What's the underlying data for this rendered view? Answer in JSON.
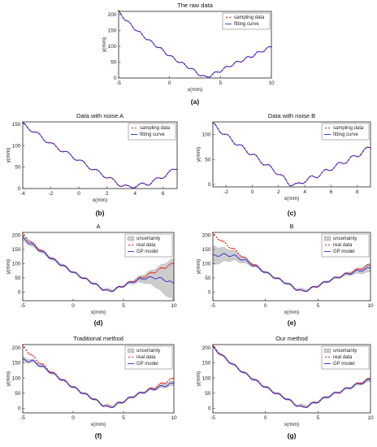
{
  "chart_data": [
    {
      "id": "a",
      "type": "line",
      "title": "The raw data",
      "label": "(a)",
      "xlabel": "x(mm)",
      "ylabel": "y(mm)",
      "xlim": [
        -5,
        10
      ],
      "ylim": [
        0,
        210
      ],
      "xticks": [
        -5,
        0,
        5,
        10
      ],
      "yticks": [
        0,
        50,
        100,
        150,
        200
      ],
      "legend": [
        "sampling data",
        "fitting curve"
      ],
      "legend_position": "top-right",
      "legend_marker": "dot",
      "grid": false,
      "series": [
        {
          "name": "sampling data",
          "x": [
            -5,
            -4,
            -3,
            -2,
            -1,
            0,
            1,
            2,
            3,
            3.5,
            4,
            5,
            6,
            7,
            8,
            9,
            10
          ],
          "y": [
            208,
            173,
            144,
            118,
            95,
            70,
            50,
            32,
            10,
            2,
            8,
            23,
            40,
            54,
            68,
            84,
            98
          ]
        },
        {
          "name": "fitting curve",
          "x": [
            -5,
            -4,
            -3,
            -2,
            -1,
            0,
            1,
            2,
            3,
            3.5,
            4,
            5,
            6,
            7,
            8,
            9,
            10
          ],
          "y": [
            208,
            173,
            144,
            118,
            95,
            70,
            50,
            32,
            10,
            2,
            8,
            23,
            40,
            54,
            68,
            84,
            98
          ]
        }
      ]
    },
    {
      "id": "b",
      "type": "line",
      "title": "Data with noise A",
      "label": "(b)",
      "xlabel": "x(mm)",
      "ylabel": "y(mm)",
      "xlim": [
        -4,
        7
      ],
      "ylim": [
        0,
        155
      ],
      "xticks": [
        -4,
        -2,
        0,
        2,
        4,
        6
      ],
      "yticks": [
        0,
        50,
        100,
        150
      ],
      "legend": [
        "sampling data",
        "fitting curve"
      ],
      "legend_position": "top-right",
      "legend_marker": "dot",
      "grid": false,
      "series": [
        {
          "name": "sampling data",
          "x": [
            -4,
            -3,
            -2,
            -1,
            0,
            1,
            2,
            3,
            3.5,
            4,
            5,
            6,
            7
          ],
          "y": [
            150,
            128,
            104,
            85,
            66,
            45,
            27,
            8,
            3,
            6,
            12,
            28,
            48
          ]
        },
        {
          "name": "fitting curve",
          "x": [
            -4,
            -3,
            -2,
            -1,
            0,
            1,
            2,
            3,
            3.5,
            4,
            5,
            6,
            7
          ],
          "y": [
            150,
            128,
            104,
            85,
            66,
            45,
            27,
            8,
            3,
            6,
            12,
            28,
            48
          ]
        }
      ]
    },
    {
      "id": "c",
      "type": "line",
      "title": "Data with noise B",
      "label": "(c)",
      "xlabel": "x(mm)",
      "ylabel": "y(mm)",
      "xlim": [
        -3,
        9
      ],
      "ylim": [
        -5,
        125
      ],
      "xticks": [
        -2,
        0,
        2,
        4,
        6,
        8
      ],
      "yticks": [
        0,
        50,
        100
      ],
      "legend": [
        "sampling data",
        "fitting curve"
      ],
      "legend_position": "top-right",
      "legend_marker": "dot",
      "grid": false,
      "series": [
        {
          "name": "sampling data",
          "x": [
            -3,
            -2,
            -1,
            0,
            1,
            2,
            2.8,
            3.4,
            4,
            5,
            6,
            7,
            8,
            9
          ],
          "y": [
            120,
            98,
            78,
            60,
            40,
            22,
            2,
            -2,
            8,
            18,
            32,
            45,
            58,
            75
          ]
        },
        {
          "name": "fitting curve",
          "x": [
            -3,
            -2,
            -1,
            0,
            1,
            2,
            2.8,
            3.4,
            4,
            5,
            6,
            7,
            8,
            9
          ],
          "y": [
            120,
            98,
            78,
            60,
            40,
            22,
            2,
            -2,
            8,
            18,
            32,
            45,
            58,
            75
          ]
        }
      ]
    },
    {
      "id": "d",
      "type": "line",
      "title": "A",
      "label": "(d)",
      "xlabel": "x(mm)",
      "ylabel": "y(mm)",
      "xlim": [
        -5,
        10
      ],
      "ylim": [
        -30,
        210
      ],
      "xticks": [
        -5,
        0,
        5,
        10
      ],
      "yticks": [
        0,
        50,
        100,
        150,
        200
      ],
      "legend": [
        "uncertainty",
        "real data",
        "GP model"
      ],
      "legend_position": "top-right",
      "grid": false,
      "series": [
        {
          "name": "real data",
          "x": [
            -5,
            -4,
            -3,
            -2,
            -1,
            0,
            1,
            2,
            3,
            3.5,
            4,
            5,
            6,
            7,
            8,
            9,
            10
          ],
          "y": [
            205,
            170,
            142,
            116,
            93,
            70,
            50,
            32,
            10,
            2,
            8,
            23,
            40,
            54,
            70,
            86,
            100
          ]
        },
        {
          "name": "GP model",
          "x": [
            -5,
            -4,
            -3,
            -2,
            -1,
            0,
            1,
            2,
            3,
            3.5,
            4,
            5,
            6,
            7,
            8,
            9,
            10
          ],
          "y": [
            190,
            165,
            140,
            115,
            93,
            70,
            50,
            32,
            10,
            2,
            8,
            23,
            38,
            48,
            52,
            45,
            30
          ]
        }
      ],
      "uncertainty": {
        "x": [
          -5,
          -4,
          -3,
          -2,
          -1,
          0,
          1,
          2,
          3,
          4,
          5,
          6,
          7,
          8,
          9,
          10
        ],
        "upper": [
          200,
          172,
          146,
          120,
          97,
          73,
          53,
          35,
          13,
          11,
          26,
          44,
          62,
          80,
          100,
          118
        ],
        "lower": [
          180,
          158,
          134,
          110,
          89,
          67,
          47,
          29,
          7,
          5,
          20,
          32,
          34,
          24,
          -5,
          -30
        ]
      }
    },
    {
      "id": "e",
      "type": "line",
      "title": "B",
      "label": "(e)",
      "xlabel": "x(mm)",
      "ylabel": "y(mm)",
      "xlim": [
        -5,
        10
      ],
      "ylim": [
        -30,
        210
      ],
      "xticks": [
        -5,
        0,
        5,
        10
      ],
      "yticks": [
        0,
        50,
        100,
        150,
        200
      ],
      "legend": [
        "uncertainty",
        "real data",
        "GP model"
      ],
      "legend_position": "top-right",
      "grid": false,
      "series": [
        {
          "name": "real data",
          "x": [
            -5,
            -4,
            -3,
            -2,
            -1,
            0,
            1,
            2,
            3,
            3.5,
            4,
            5,
            6,
            7,
            8,
            9,
            10
          ],
          "y": [
            205,
            175,
            150,
            120,
            95,
            70,
            50,
            32,
            10,
            2,
            8,
            23,
            40,
            54,
            68,
            82,
            95
          ]
        },
        {
          "name": "GP model",
          "x": [
            -5,
            -4,
            -3,
            -2,
            -1,
            0,
            1,
            2,
            3,
            3.5,
            4,
            5,
            6,
            7,
            8,
            9,
            10
          ],
          "y": [
            128,
            132,
            128,
            112,
            92,
            70,
            50,
            32,
            10,
            2,
            8,
            23,
            40,
            54,
            66,
            76,
            85
          ]
        }
      ],
      "uncertainty": {
        "x": [
          -5,
          -4,
          -3,
          -2,
          -1,
          0,
          1,
          2,
          3,
          4,
          5,
          6,
          7,
          8,
          9,
          10
        ],
        "upper": [
          160,
          156,
          145,
          122,
          97,
          73,
          53,
          35,
          13,
          11,
          26,
          43,
          57,
          72,
          86,
          100
        ],
        "lower": [
          95,
          108,
          112,
          102,
          87,
          67,
          47,
          29,
          7,
          5,
          20,
          37,
          51,
          60,
          66,
          70
        ]
      }
    },
    {
      "id": "f",
      "type": "line",
      "title": "Traditional method",
      "label": "(f)",
      "xlabel": "x(mm)",
      "ylabel": "y(mm)",
      "xlim": [
        -5,
        10
      ],
      "ylim": [
        -15,
        210
      ],
      "xticks": [
        -5,
        0,
        5,
        10
      ],
      "yticks": [
        0,
        50,
        100,
        150,
        200
      ],
      "legend": [
        "uncertainty",
        "real data",
        "GP model"
      ],
      "legend_position": "top-right",
      "grid": false,
      "series": [
        {
          "name": "real data",
          "x": [
            -5,
            -4,
            -3,
            -2,
            -1,
            0,
            1,
            2,
            3,
            3.5,
            4,
            5,
            6,
            7,
            8,
            9,
            10
          ],
          "y": [
            205,
            170,
            142,
            116,
            93,
            70,
            50,
            32,
            10,
            2,
            8,
            23,
            40,
            54,
            68,
            84,
            98
          ]
        },
        {
          "name": "GP model",
          "x": [
            -5,
            -4,
            -3,
            -2,
            -1,
            0,
            1,
            2,
            3,
            3.5,
            4,
            5,
            6,
            7,
            8,
            9,
            10
          ],
          "y": [
            160,
            155,
            136,
            114,
            92,
            70,
            50,
            32,
            10,
            2,
            8,
            23,
            40,
            54,
            64,
            74,
            82
          ]
        }
      ],
      "uncertainty": {
        "x": [
          -5,
          -4,
          -3,
          -2,
          -1,
          0,
          1,
          2,
          3,
          4,
          5,
          6,
          7,
          8,
          9,
          10
        ],
        "upper": [
          168,
          160,
          140,
          117,
          95,
          73,
          53,
          35,
          13,
          11,
          26,
          43,
          57,
          68,
          80,
          90
        ],
        "lower": [
          152,
          150,
          132,
          111,
          89,
          67,
          47,
          29,
          7,
          5,
          20,
          37,
          51,
          60,
          68,
          74
        ]
      }
    },
    {
      "id": "g",
      "type": "line",
      "title": "Our method",
      "label": "(g)",
      "xlabel": "x(mm)",
      "ylabel": "y(mm)",
      "xlim": [
        -5,
        10
      ],
      "ylim": [
        -15,
        210
      ],
      "xticks": [
        -5,
        0,
        5,
        10
      ],
      "yticks": [
        0,
        50,
        100,
        150,
        200
      ],
      "legend": [
        "uncertainty",
        "real data",
        "GP model"
      ],
      "legend_position": "top-right",
      "grid": false,
      "series": [
        {
          "name": "real data",
          "x": [
            -5,
            -4,
            -3,
            -2,
            -1,
            0,
            1,
            2,
            3,
            3.5,
            4,
            5,
            6,
            7,
            8,
            9,
            10
          ],
          "y": [
            205,
            170,
            142,
            116,
            93,
            70,
            50,
            32,
            10,
            2,
            8,
            23,
            40,
            54,
            68,
            84,
            98
          ]
        },
        {
          "name": "GP model",
          "x": [
            -5,
            -4,
            -3,
            -2,
            -1,
            0,
            1,
            2,
            3,
            3.5,
            4,
            5,
            6,
            7,
            8,
            9,
            10
          ],
          "y": [
            202,
            170,
            142,
            116,
            93,
            70,
            50,
            32,
            10,
            2,
            8,
            23,
            40,
            54,
            68,
            82,
            94
          ]
        }
      ],
      "uncertainty": {
        "x": [
          -5,
          -4,
          -3,
          -2,
          -1,
          0,
          1,
          2,
          3,
          4,
          5,
          6,
          7,
          8,
          9,
          10
        ],
        "upper": [
          206,
          173,
          145,
          119,
          96,
          73,
          53,
          35,
          13,
          11,
          26,
          43,
          57,
          71,
          86,
          100
        ],
        "lower": [
          198,
          167,
          139,
          113,
          90,
          67,
          47,
          29,
          7,
          5,
          20,
          37,
          51,
          65,
          78,
          88
        ]
      }
    }
  ]
}
